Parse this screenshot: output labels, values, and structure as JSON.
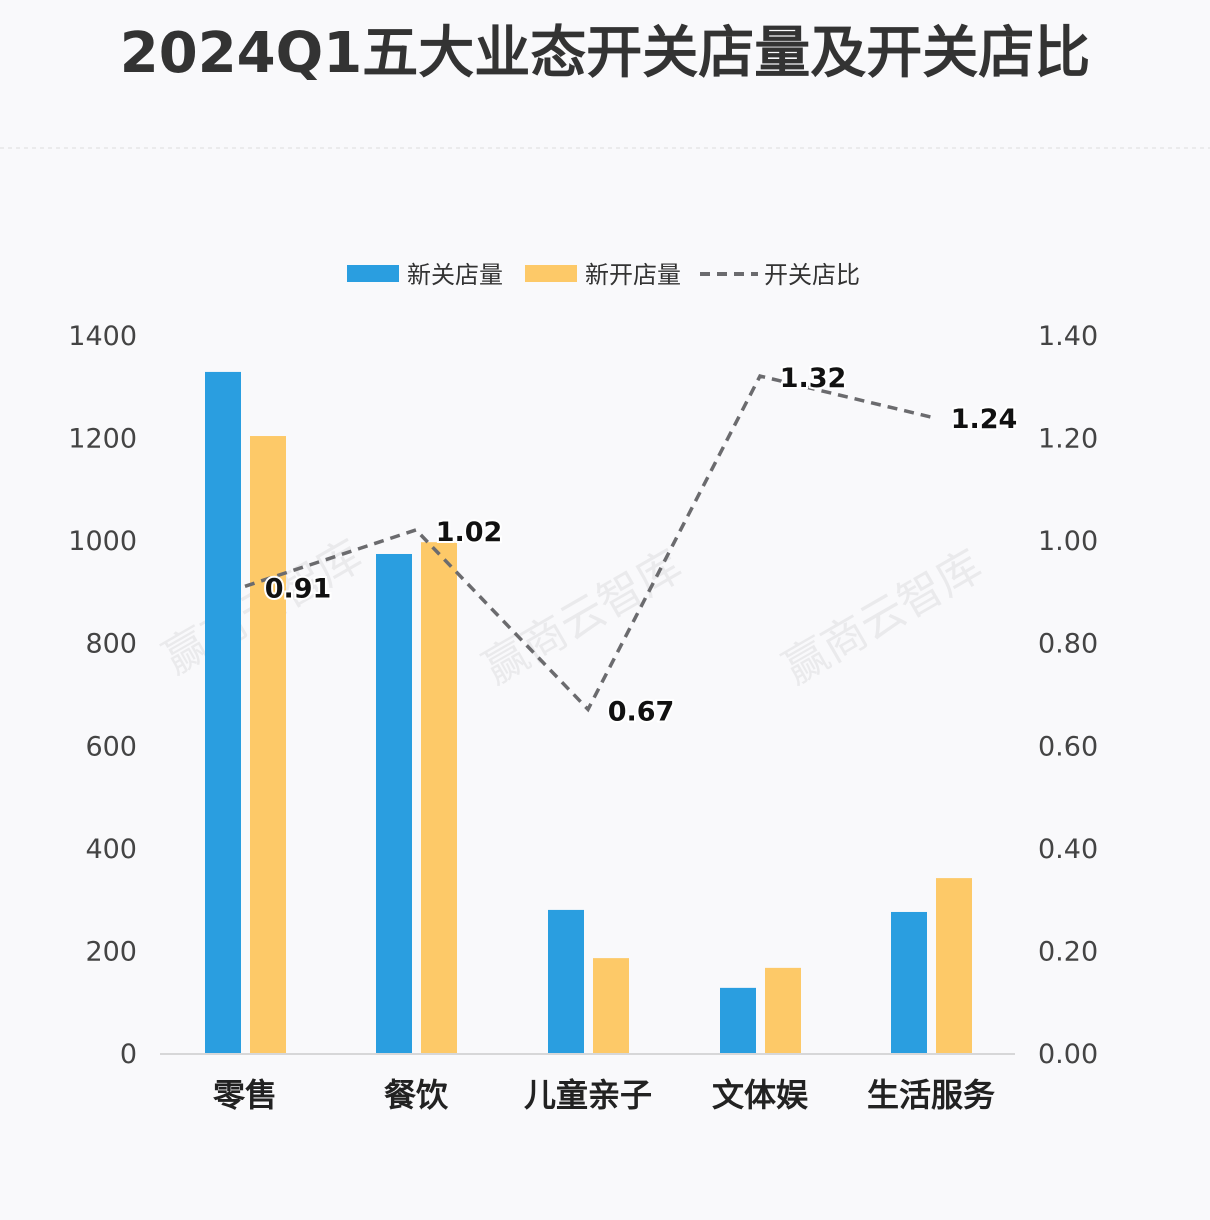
{
  "chart_data": {
    "type": "bar",
    "title": "2024Q1五大业态开关店量及开关店比",
    "categories": [
      "零售",
      "餐饮",
      "儿童亲子",
      "文体娱",
      "生活服务"
    ],
    "series": [
      {
        "name": "新关店量",
        "type": "bar",
        "axis": "left",
        "color": "#2a9ee0",
        "values": [
          1328,
          973,
          279,
          127,
          275
        ]
      },
      {
        "name": "新开店量",
        "type": "bar",
        "axis": "left",
        "color": "#fdc968",
        "values": [
          1203,
          996,
          185,
          166,
          341
        ]
      },
      {
        "name": "开关店比",
        "type": "line",
        "style": "dashed",
        "axis": "right",
        "color": "#6b6b6e",
        "values": [
          0.91,
          1.02,
          0.67,
          1.32,
          1.24
        ],
        "labels": [
          "0.91",
          "1.02",
          "0.67",
          "1.32",
          "1.24"
        ]
      }
    ],
    "y_left": {
      "ylim": [
        0,
        1400
      ],
      "ticks": [
        "0",
        "200",
        "400",
        "600",
        "800",
        "1000",
        "1200",
        "1400"
      ]
    },
    "y_right": {
      "ylim": [
        0,
        1.4
      ],
      "ticks": [
        "0.00",
        "0.20",
        "0.40",
        "0.60",
        "0.80",
        "1.00",
        "1.20",
        "1.40"
      ]
    },
    "legend": {
      "placement": "top-center",
      "items": [
        "新关店量",
        "新开店量",
        "开关店比"
      ]
    },
    "grid": false,
    "watermark": "赢商云智库"
  }
}
